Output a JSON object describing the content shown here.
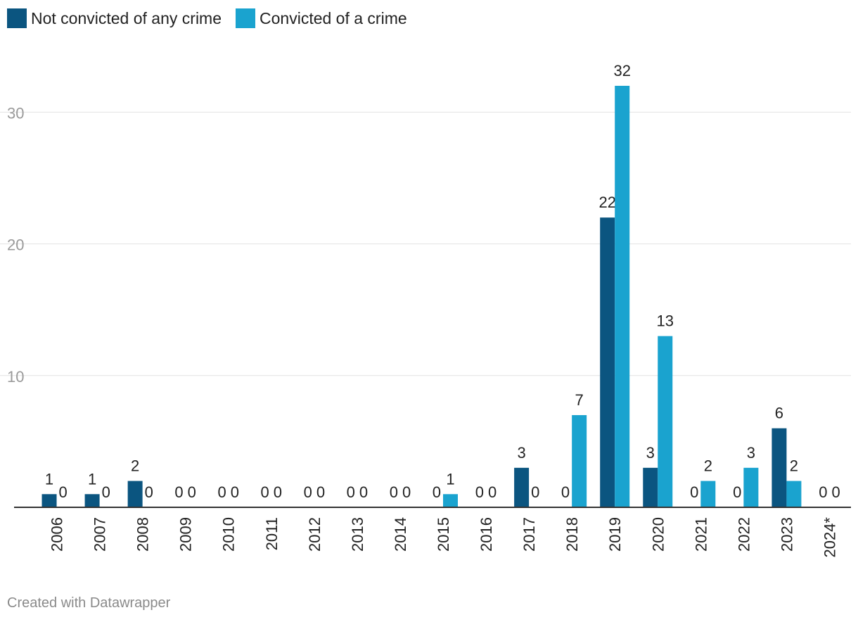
{
  "legend": {
    "series0": "Not convicted of any crime",
    "series1": "Convicted of a crime"
  },
  "footer": "Created with Datawrapper",
  "colors": {
    "series0": "#0b5580",
    "series1": "#1aa3cf",
    "grid": "#e3e3e3",
    "axis_text": "#9a9a9a"
  },
  "chart_data": {
    "type": "bar",
    "categories": [
      "2006",
      "2007",
      "2008",
      "2009",
      "2010",
      "2011",
      "2012",
      "2013",
      "2014",
      "2015",
      "2016",
      "2017",
      "2018",
      "2019",
      "2020",
      "2021",
      "2022",
      "2023",
      "2024*"
    ],
    "series": [
      {
        "name": "Not convicted of any crime",
        "values": [
          1,
          1,
          2,
          0,
          0,
          0,
          0,
          0,
          0,
          0,
          0,
          3,
          0,
          22,
          3,
          0,
          0,
          6,
          0
        ]
      },
      {
        "name": "Convicted of a crime",
        "values": [
          0,
          0,
          0,
          0,
          0,
          0,
          0,
          0,
          0,
          1,
          0,
          0,
          7,
          32,
          13,
          2,
          3,
          2,
          0
        ]
      }
    ],
    "yticks": [
      10,
      20,
      30
    ],
    "ylim": [
      0,
      34
    ],
    "grid": true,
    "legend_position": "top-left",
    "xlabel": "",
    "ylabel": ""
  }
}
